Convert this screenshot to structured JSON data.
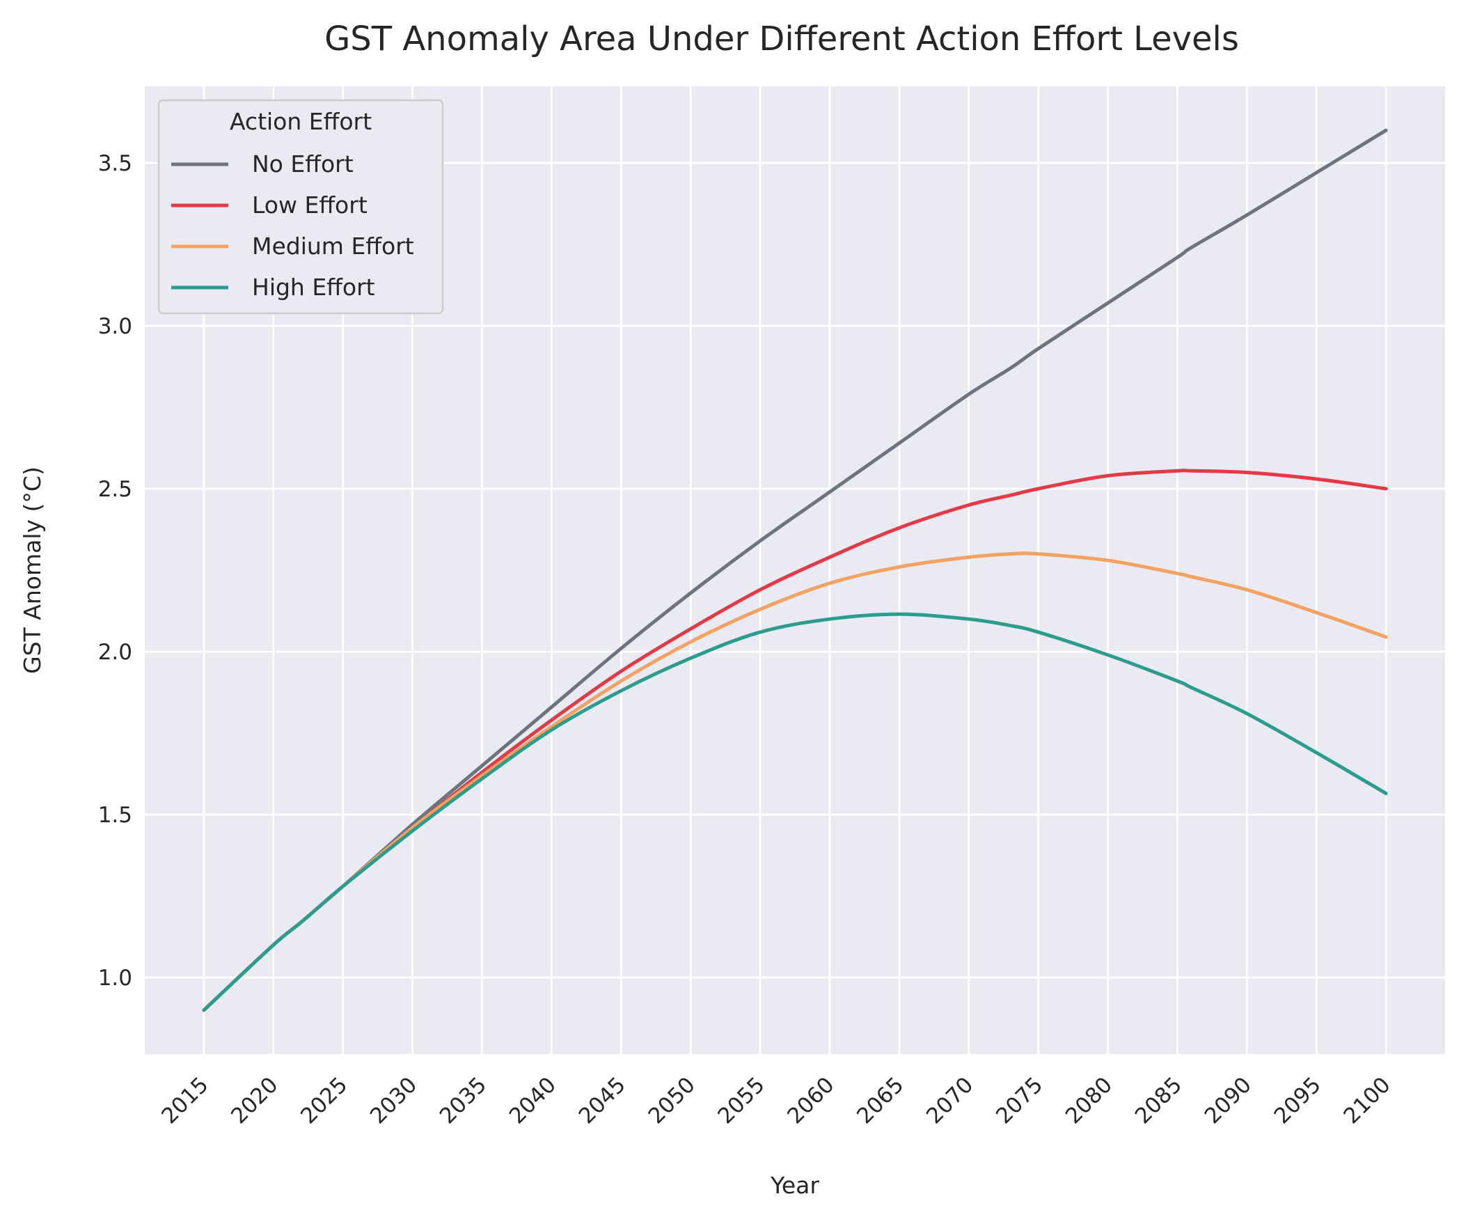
{
  "chart_data": {
    "type": "line",
    "title": "GST Anomaly Area Under Different Action Effort Levels",
    "xlabel": "Year",
    "ylabel": "GST Anomaly (°C)",
    "xlim": [
      2010.75,
      2104.25
    ],
    "ylim": [
      0.765,
      3.735
    ],
    "x_ticks": [
      2015,
      2020,
      2025,
      2030,
      2035,
      2040,
      2045,
      2050,
      2055,
      2060,
      2065,
      2070,
      2075,
      2080,
      2085,
      2090,
      2095,
      2100
    ],
    "x_tick_labels": [
      "2015",
      "2020",
      "2025",
      "2030",
      "2035",
      "2040",
      "2045",
      "2050",
      "2055",
      "2060",
      "2065",
      "2070",
      "2075",
      "2080",
      "2085",
      "2090",
      "2095",
      "2100"
    ],
    "y_ticks": [
      1.0,
      1.5,
      2.0,
      2.5,
      3.0,
      3.5
    ],
    "y_tick_labels": [
      "1.0",
      "1.5",
      "2.0",
      "2.5",
      "3.0",
      "3.5"
    ],
    "grid": true,
    "legend": {
      "title": "Action Effort",
      "position": "top-left"
    },
    "x": [
      2015,
      2020,
      2022,
      2025,
      2030,
      2035,
      2040,
      2045,
      2050,
      2055,
      2060,
      2065,
      2070,
      2073,
      2075,
      2080,
      2085,
      2086,
      2090,
      2095,
      2100
    ],
    "series": [
      {
        "name": "No Effort",
        "color": "#6c757d",
        "values": [
          0.9,
          1.1,
          1.17,
          1.28,
          1.47,
          1.65,
          1.83,
          2.01,
          2.18,
          2.34,
          2.49,
          2.64,
          2.79,
          2.87,
          2.93,
          3.07,
          3.21,
          3.24,
          3.34,
          3.47,
          3.6
        ]
      },
      {
        "name": "Low Effort",
        "color": "#e63946",
        "values": [
          0.9,
          1.1,
          1.17,
          1.28,
          1.46,
          1.63,
          1.79,
          1.94,
          2.07,
          2.19,
          2.29,
          2.38,
          2.45,
          2.48,
          2.5,
          2.54,
          2.555,
          2.555,
          2.55,
          2.53,
          2.5
        ]
      },
      {
        "name": "Medium Effort",
        "color": "#f4a261",
        "values": [
          0.9,
          1.1,
          1.17,
          1.28,
          1.46,
          1.62,
          1.77,
          1.91,
          2.03,
          2.13,
          2.21,
          2.26,
          2.29,
          2.3,
          2.3,
          2.28,
          2.24,
          2.23,
          2.19,
          2.12,
          2.045
        ]
      },
      {
        "name": "High Effort",
        "color": "#2a9d8f",
        "values": [
          0.9,
          1.1,
          1.17,
          1.28,
          1.45,
          1.61,
          1.76,
          1.88,
          1.98,
          2.06,
          2.1,
          2.115,
          2.1,
          2.08,
          2.06,
          1.99,
          1.91,
          1.89,
          1.81,
          1.69,
          1.565
        ]
      }
    ]
  }
}
